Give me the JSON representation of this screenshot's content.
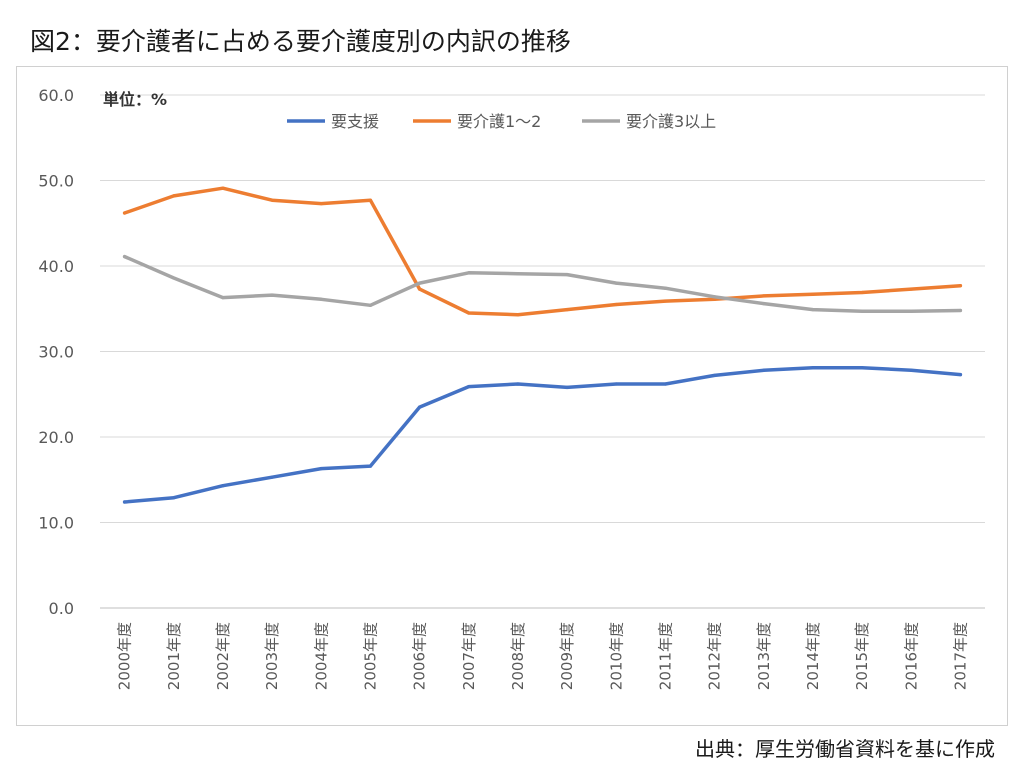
{
  "page": {
    "title": "図2：要介護者に占める要介護度別の内訳の推移",
    "source": "出典：厚生労働省資料を基に作成"
  },
  "chart_data": {
    "type": "line",
    "unit_label": "単位：%",
    "ylim": [
      0,
      60
    ],
    "yticks": [
      "0.0",
      "10.0",
      "20.0",
      "30.0",
      "40.0",
      "50.0",
      "60.0"
    ],
    "grid": true,
    "legend_position": "top",
    "categories": [
      "2000年度",
      "2001年度",
      "2002年度",
      "2003年度",
      "2004年度",
      "2005年度",
      "2006年度",
      "2007年度",
      "2008年度",
      "2009年度",
      "2010年度",
      "2011年度",
      "2012年度",
      "2013年度",
      "2014年度",
      "2015年度",
      "2016年度",
      "2017年度"
    ],
    "series": [
      {
        "name": "要支援",
        "color": "#4472c4",
        "values": [
          12.4,
          12.9,
          14.3,
          15.3,
          16.3,
          16.6,
          23.5,
          25.9,
          26.2,
          25.8,
          26.2,
          26.2,
          27.2,
          27.8,
          28.1,
          28.1,
          27.8,
          27.3
        ]
      },
      {
        "name": "要介護1～2",
        "color": "#ed7d31",
        "values": [
          46.2,
          48.2,
          49.1,
          47.7,
          47.3,
          47.7,
          37.3,
          34.5,
          34.3,
          34.9,
          35.5,
          35.9,
          36.1,
          36.5,
          36.7,
          36.9,
          37.3,
          37.7
        ]
      },
      {
        "name": "要介護3以上",
        "color": "#a5a5a5",
        "values": [
          41.1,
          38.6,
          36.3,
          36.6,
          36.1,
          35.4,
          38.0,
          39.2,
          39.1,
          39.0,
          38.0,
          37.4,
          36.4,
          35.6,
          34.9,
          34.7,
          34.7,
          34.8
        ]
      }
    ]
  }
}
